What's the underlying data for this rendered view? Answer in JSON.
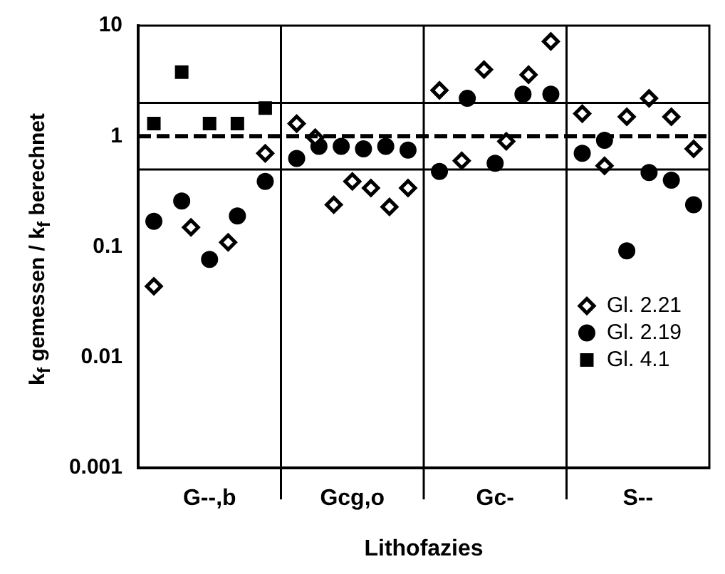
{
  "chart_data": {
    "type": "scatter",
    "xlabel": "Lithofazies",
    "ylabel": "k$_{f}$ gemessen / k$_{f}$ berechnet",
    "categories": [
      "G--,b",
      "Gcg,o",
      "Gc-",
      "S--"
    ],
    "log": "y",
    "ylim": [
      0.001,
      10
    ],
    "yticks": [
      0.001,
      0.01,
      0.1,
      1,
      10
    ],
    "grid": "x",
    "legend": "right",
    "series": [
      {
        "name": "Gl. 2.21",
        "color": "#000000",
        "marker": "diamond",
        "x": [
          "G--,b",
          "G--,b",
          "G--,b",
          "G--,b",
          "Gcg,o",
          "Gcg,o",
          "Gcg,o",
          "Gcg,o",
          "Gcg,o",
          "Gcg,o",
          "Gcg,o",
          "Gc-",
          "Gc-",
          "Gc-",
          "Gc-",
          "Gc-",
          "Gc-",
          "S--",
          "S--",
          "S--",
          "S--",
          "S--",
          "S--"
        ],
        "values": [
          0.044,
          0.15,
          0.11,
          0.7,
          1.3,
          0.97,
          0.24,
          0.39,
          0.34,
          0.23,
          0.34,
          2.6,
          0.6,
          4,
          0.9,
          3.6,
          7.2,
          1.6,
          0.54,
          1.5,
          2.2,
          1.5,
          0.77
        ]
      },
      {
        "name": "Gl. 2.19",
        "color": "#000000",
        "marker": "circle",
        "x": [
          "G--,b",
          "G--,b",
          "G--,b",
          "G--,b",
          "G--,b",
          "Gcg,o",
          "Gcg,o",
          "Gcg,o",
          "Gcg,o",
          "Gcg,o",
          "Gcg,o",
          "Gc-",
          "Gc-",
          "Gc-",
          "Gc-",
          "Gc-",
          "S--",
          "S--",
          "S--",
          "S--",
          "S--",
          "S--"
        ],
        "values": [
          0.17,
          0.26,
          0.077,
          0.19,
          0.39,
          0.63,
          0.81,
          0.81,
          0.77,
          0.81,
          0.75,
          0.48,
          2.2,
          0.57,
          2.4,
          2.4,
          0.7,
          0.92,
          0.092,
          0.47,
          0.4,
          0.24
        ]
      },
      {
        "name": "Gl. 4.1",
        "color": "#000000",
        "marker": "square",
        "x": [
          "G--,b",
          "G--,b",
          "G--,b",
          "G--,b",
          "G--,b"
        ],
        "values": [
          1.3,
          3.8,
          1.3,
          1.3,
          1.8
        ]
      }
    ],
    "ref_lines": [
      {
        "axis": "y",
        "value": 2,
        "line_style": "solid"
      },
      {
        "axis": "y",
        "value": 1,
        "line_style": "dashed"
      },
      {
        "axis": "y",
        "value": 0.5,
        "line_style": "solid"
      }
    ]
  }
}
